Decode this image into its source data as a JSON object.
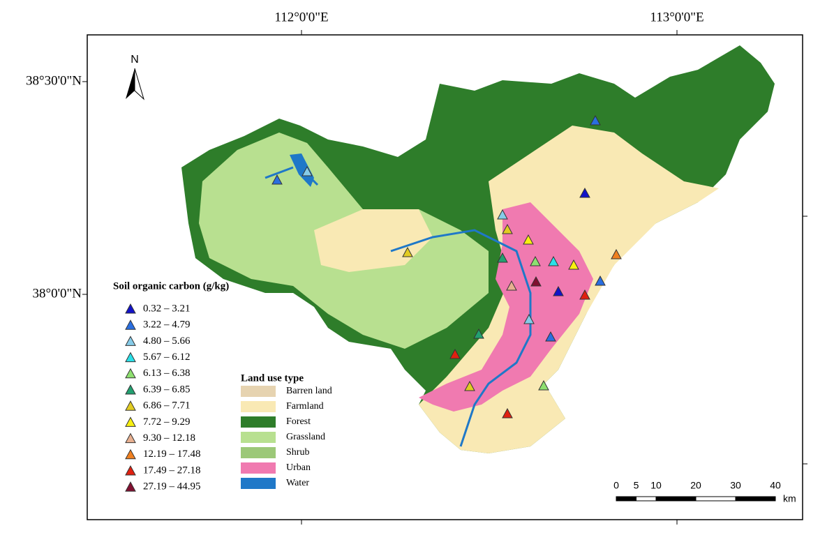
{
  "axes": {
    "top": [
      "112°0'0\"E",
      "113°0'0\"E"
    ],
    "left": [
      "38°30'0\"N",
      "38°0'0\"N"
    ]
  },
  "north": "N",
  "soc_legend": {
    "title": "Soil organic carbon (g/kg)",
    "classes": [
      {
        "label": "0.32 – 3.21",
        "color": "#1212c8"
      },
      {
        "label": "3.22 – 4.79",
        "color": "#2a6ee0"
      },
      {
        "label": "4.80 – 5.66",
        "color": "#86cbe8"
      },
      {
        "label": "5.67 – 6.12",
        "color": "#2ae0e8"
      },
      {
        "label": "6.13 – 6.38",
        "color": "#8ee070"
      },
      {
        "label": "6.39 – 6.85",
        "color": "#22a070"
      },
      {
        "label": "6.86 – 7.71",
        "color": "#e2cc22"
      },
      {
        "label": "7.72 – 9.29",
        "color": "#f8f010"
      },
      {
        "label": "9.30 – 12.18",
        "color": "#e8b090"
      },
      {
        "label": "12.19 – 17.48",
        "color": "#f08020"
      },
      {
        "label": "17.49 – 27.18",
        "color": "#e02010"
      },
      {
        "label": "27.19 – 44.95",
        "color": "#801030"
      }
    ]
  },
  "landuse_legend": {
    "title": "Land use type",
    "classes": [
      {
        "label": "Barren land",
        "color": "#e6d3b0"
      },
      {
        "label": "Farmland",
        "color": "#f9e9b4"
      },
      {
        "label": "Forest",
        "color": "#2e7d2a"
      },
      {
        "label": "Grassland",
        "color": "#b8e090"
      },
      {
        "label": "Shrub",
        "color": "#9cc878"
      },
      {
        "label": "Urban",
        "color": "#f07ab0"
      },
      {
        "label": "Water",
        "color": "#1f78c8"
      }
    ]
  },
  "scale_bar": {
    "labels": [
      0,
      5,
      10,
      20,
      30,
      40
    ],
    "unit": "km"
  }
}
